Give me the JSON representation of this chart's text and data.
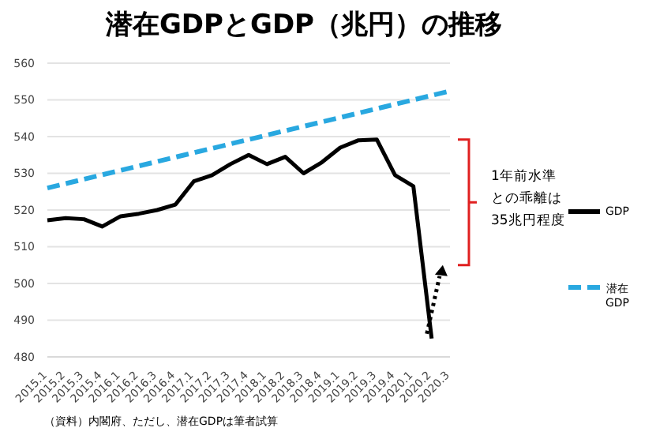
{
  "chart_data": {
    "type": "line",
    "title": "潜在GDPとGDP（兆円）の推移",
    "categories": [
      "2015.1",
      "2015.2",
      "2015.3",
      "2015.4",
      "2016.1",
      "2016.2",
      "2016.3",
      "2016.4",
      "2017.1",
      "2017.2",
      "2017.3",
      "2017.4",
      "2018.1",
      "2018.2",
      "2018.3",
      "2018.4",
      "2019.1",
      "2019.2",
      "2019.3",
      "2019.4",
      "2020.1",
      "2020.2",
      "2020.3"
    ],
    "series": [
      {
        "name": "GDP",
        "color": "#000000",
        "line_style": "solid",
        "values": [
          517.2,
          517.8,
          517.5,
          515.5,
          518.3,
          519,
          520,
          521.5,
          527.8,
          529.5,
          532.5,
          535,
          532.5,
          534.5,
          530,
          533,
          537,
          539,
          539.2,
          529.5,
          526.5,
          485,
          null
        ]
      },
      {
        "name": "潜在GDP",
        "color": "#29a8e0",
        "line_style": "dashed",
        "values": [
          526,
          527.2,
          528.4,
          529.6,
          530.8,
          532,
          533.2,
          534.4,
          535.6,
          536.8,
          538,
          539.2,
          540.4,
          541.6,
          542.8,
          544,
          545.2,
          546.4,
          547.6,
          548.8,
          550,
          551.2,
          552.4
        ]
      }
    ],
    "ylim": [
      480,
      560
    ],
    "yticks": [
      480,
      490,
      500,
      510,
      520,
      530,
      540,
      550,
      560
    ],
    "grid": "y",
    "legend": "right",
    "marker": "none",
    "annotations": [
      "1年前水準との乖離は35兆円程度",
      "（資料）内閣府、ただし、潜在GDPは筆者試算"
    ]
  }
}
